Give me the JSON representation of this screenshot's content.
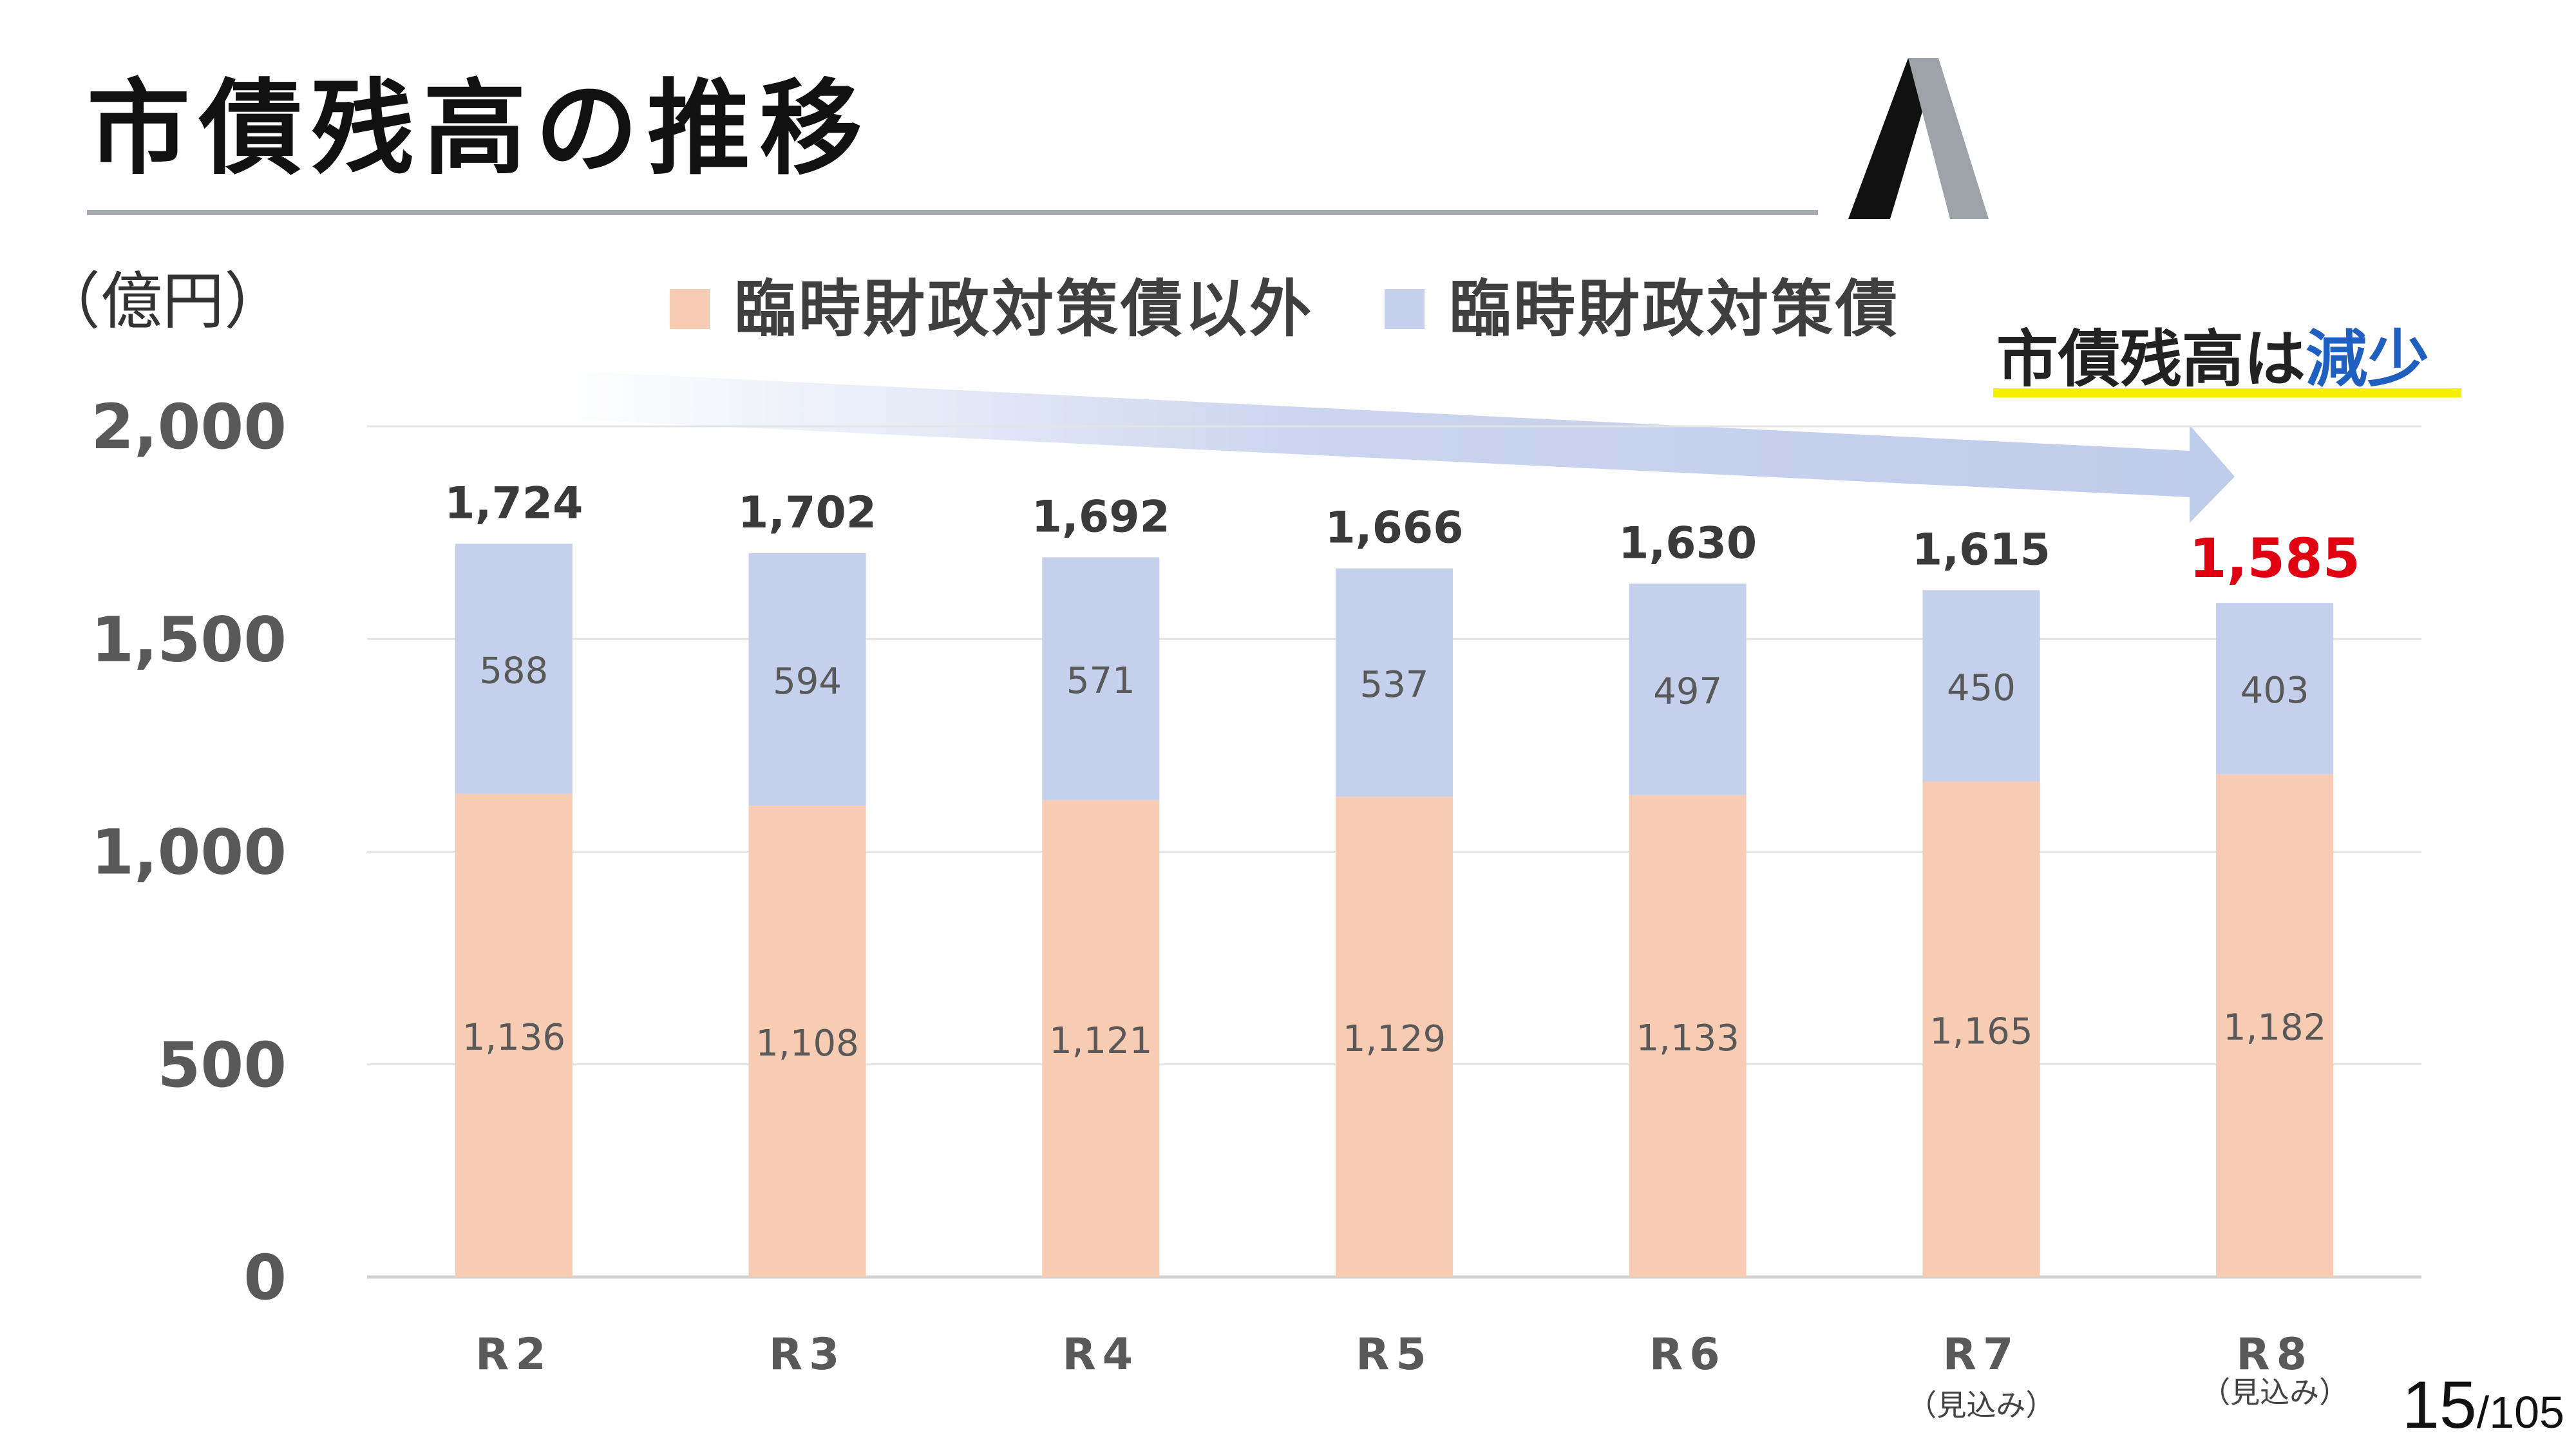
{
  "header": {
    "title": "市債残高の推移"
  },
  "chart_data": {
    "type": "bar",
    "stacked": true,
    "unit_label": "（億円）",
    "categories": [
      "R2",
      "R3",
      "R4",
      "R5",
      "R6",
      "R7",
      "R8"
    ],
    "category_notes": [
      "",
      "",
      "",
      "",
      "",
      "（見込み）",
      "（見込み）"
    ],
    "series": [
      {
        "name": "臨時財政対策債以外",
        "values": [
          1136,
          1108,
          1121,
          1129,
          1133,
          1165,
          1182
        ],
        "color": "#f8cbb3"
      },
      {
        "name": "臨時財政対策債",
        "values": [
          588,
          594,
          571,
          537,
          497,
          450,
          403
        ],
        "color": "#c5d0ed"
      }
    ],
    "totals": [
      "1,724",
      "1,702",
      "1,692",
      "1,666",
      "1,630",
      "1,615",
      "1,585"
    ],
    "segment_labels": {
      "lower": [
        "1,136",
        "1,108",
        "1,121",
        "1,129",
        "1,133",
        "1,165",
        "1,182"
      ],
      "upper": [
        "588",
        "594",
        "571",
        "537",
        "497",
        "450",
        "403"
      ]
    },
    "highlight_total_index": 6,
    "highlight_color": "#e00012",
    "ylim": [
      0,
      2000
    ],
    "yticks": [
      0,
      500,
      1000,
      1500,
      2000
    ],
    "ytick_labels": [
      "0",
      "500",
      "1,000",
      "1,500",
      "2,000"
    ],
    "grid": true,
    "legend_position": "top"
  },
  "headline": {
    "prefix": "市債残高は",
    "accent": "減少",
    "accent_color": "#1f5fbf"
  },
  "footer": {
    "page_current": "15",
    "page_total": "/105"
  }
}
